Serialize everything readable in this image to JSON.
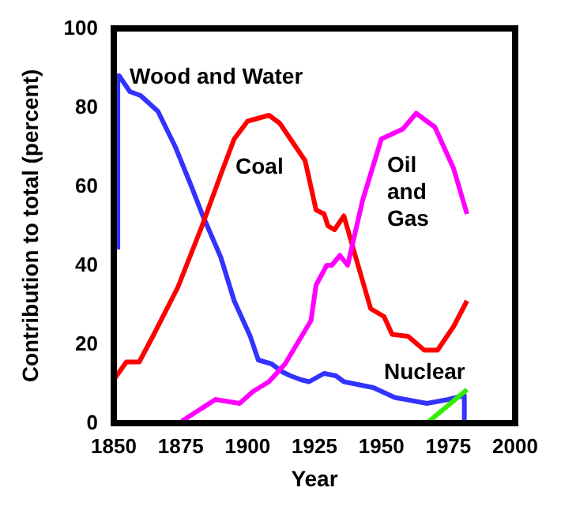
{
  "chart_data": {
    "type": "line",
    "xlabel": "Year",
    "ylabel": "Contribution to total (percent)",
    "xlim": [
      1850,
      2000
    ],
    "ylim": [
      0,
      100
    ],
    "xticks": [
      1850,
      1875,
      1900,
      1925,
      1950,
      1975,
      2000
    ],
    "yticks": [
      0,
      20,
      40,
      60,
      80,
      100
    ],
    "grid": false,
    "legend": false,
    "marker": "none",
    "line_style": "solid",
    "series": [
      {
        "name": "Wood and Water",
        "color": "#3333ff",
        "x": [
          1851.5,
          1851.5,
          1852,
          1856,
          1860,
          1866.5,
          1873,
          1879,
          1883,
          1890,
          1895,
          1901,
          1904,
          1909,
          1913,
          1916,
          1920,
          1923,
          1928.6,
          1933,
          1936,
          1947,
          1955,
          1967,
          1975,
          1981,
          1981
        ],
        "values": [
          44,
          88,
          88,
          84,
          83,
          79,
          70,
          60,
          53,
          42,
          31,
          22,
          16,
          15,
          13,
          12,
          11,
          10.5,
          12.6,
          12,
          10.5,
          9,
          6.5,
          5,
          6,
          7,
          0
        ]
      },
      {
        "name": "Coal",
        "color": "#ff0000",
        "x": [
          1850,
          1854.7,
          1859.5,
          1864.6,
          1874,
          1883,
          1890,
          1895,
          1900,
          1908,
          1912,
          1917,
          1921.5,
          1925.6,
          1928.6,
          1930,
          1932.5,
          1936,
          1940,
          1946,
          1951,
          1954,
          1960,
          1966,
          1971,
          1977,
          1982
        ],
        "values": [
          11,
          15.5,
          15.5,
          22,
          34.5,
          50,
          63,
          72,
          76.5,
          78,
          76,
          71,
          66.5,
          54,
          53,
          50,
          49,
          52.5,
          43,
          29,
          27,
          22.5,
          22,
          18.5,
          18.5,
          24.5,
          31
        ]
      },
      {
        "name": "Oil and Gas",
        "color": "#ff00ff",
        "x": [
          1875.4,
          1880,
          1888,
          1897,
          1902,
          1908,
          1914,
          1923.7,
          1925.6,
          1929.6,
          1931.5,
          1934.5,
          1937.4,
          1943,
          1950,
          1958,
          1963,
          1970,
          1977,
          1982
        ],
        "values": [
          0.5,
          2.5,
          6,
          5,
          8,
          10.5,
          15,
          26,
          35,
          40,
          40,
          42.5,
          40,
          56.5,
          72,
          74.5,
          78.5,
          75,
          64.5,
          53
        ]
      },
      {
        "name": "Nuclear",
        "color": "#33ee00",
        "x": [
          1967,
          1982
        ],
        "values": [
          0,
          8.5
        ]
      }
    ]
  }
}
